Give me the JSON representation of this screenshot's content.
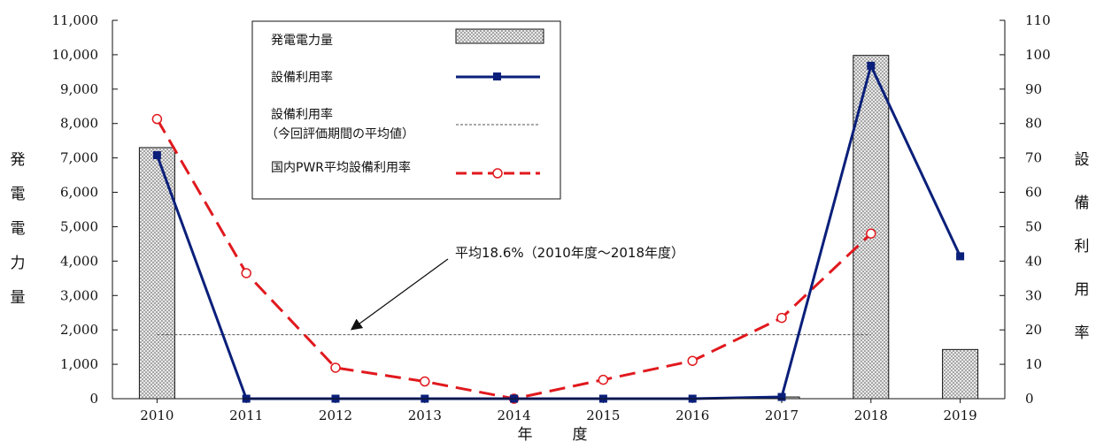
{
  "chart_data": {
    "type": "bar",
    "categories": [
      "2010",
      "2011",
      "2012",
      "2013",
      "2014",
      "2015",
      "2016",
      "2017",
      "2018",
      "2019"
    ],
    "xlabel": "年　度",
    "ylabel_left": "発電電力量",
    "ylabel_right": "設備利用率",
    "ylim_left": [
      0,
      11000
    ],
    "ylim_right": [
      0,
      110
    ],
    "yticks_left": [
      "0",
      "1,000",
      "2,000",
      "3,000",
      "4,000",
      "5,000",
      "6,000",
      "7,000",
      "8,000",
      "9,000",
      "10,000",
      "11,000"
    ],
    "yticks_right": [
      "0",
      "10",
      "20",
      "30",
      "40",
      "50",
      "60",
      "70",
      "80",
      "90",
      "100",
      "110"
    ],
    "series": [
      {
        "name": "発電電力量",
        "kind": "bar",
        "axis": "left",
        "values": [
          7300,
          0,
          0,
          0,
          0,
          0,
          0,
          50,
          9980,
          1430
        ]
      },
      {
        "name": "設備利用率",
        "kind": "line",
        "axis": "right",
        "color": "#0a1f7a",
        "values": [
          70.8,
          0,
          0,
          0,
          0,
          0,
          0,
          0.5,
          96.8,
          41.4
        ]
      },
      {
        "name": "設備利用率",
        "name_line2": "（今回評価期間の平均値）",
        "kind": "hline",
        "axis": "right",
        "value": 18.6,
        "from": "2010",
        "to": "2018",
        "color": "#555555"
      },
      {
        "name": "国内PWR平均設備利用率",
        "kind": "line",
        "axis": "right",
        "color": "#e0191e",
        "values": [
          81.3,
          36.5,
          9.0,
          5.0,
          0,
          5.5,
          11.0,
          23.5,
          48.0,
          null
        ]
      }
    ],
    "annotation": "平均18.6%（2010年度～2018年度）",
    "legend_position": "top-left"
  }
}
